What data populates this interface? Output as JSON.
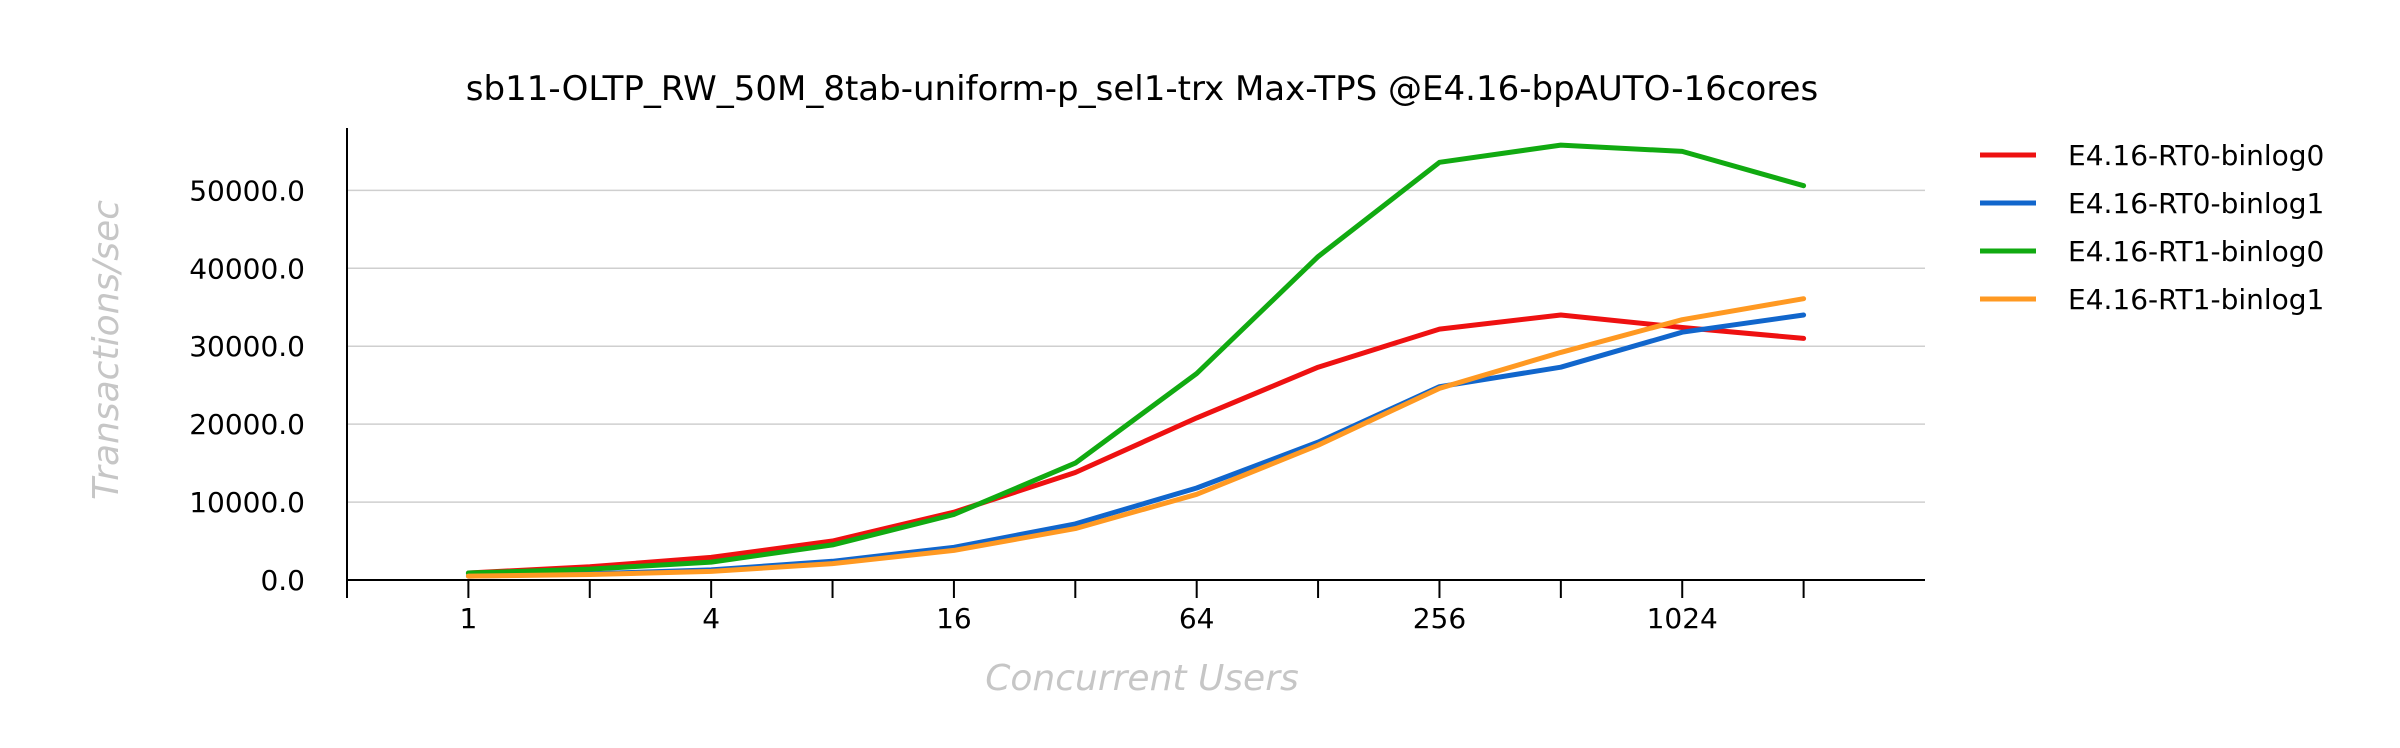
{
  "chart_data": {
    "type": "line",
    "title": "sb11-OLTP_RW_50M_8tab-uniform-p_sel1-trx Max-TPS @E4.16-bpAUTO-16cores",
    "xlabel": "Concurrent Users",
    "ylabel": "Transactions/sec",
    "x_scale": "log2",
    "x": [
      1,
      2,
      4,
      8,
      16,
      32,
      64,
      128,
      256,
      512,
      1024,
      2048
    ],
    "x_tick_labels": [
      "1",
      "4",
      "16",
      "64",
      "256",
      "1024"
    ],
    "x_tick_values": [
      1,
      4,
      16,
      64,
      256,
      1024
    ],
    "xlim": [
      0.5,
      4096
    ],
    "y_tick_labels": [
      "0.0",
      "10000.0",
      "20000.0",
      "30000.0",
      "40000.0",
      "50000.0"
    ],
    "y_tick_values": [
      0,
      10000,
      20000,
      30000,
      40000,
      50000
    ],
    "ylim": [
      0,
      58000
    ],
    "grid": "horizontal",
    "legend_position": "outside-right-top",
    "series": [
      {
        "name": "E4.16-RT0-binlog0",
        "color": "#ee1111",
        "values": [
          900,
          1700,
          2900,
          5000,
          8700,
          13800,
          20800,
          27300,
          32200,
          34000,
          32400,
          31000
        ]
      },
      {
        "name": "E4.16-RT0-binlog1",
        "color": "#1166cc",
        "values": [
          500,
          800,
          1300,
          2400,
          4200,
          7200,
          11800,
          17700,
          24800,
          27300,
          31800,
          34000
        ]
      },
      {
        "name": "E4.16-RT1-binlog0",
        "color": "#11aa11",
        "values": [
          900,
          1400,
          2300,
          4500,
          8400,
          15000,
          26500,
          41500,
          53600,
          55800,
          55000,
          50600
        ]
      },
      {
        "name": "E4.16-RT1-binlog1",
        "color": "#ff9922",
        "values": [
          500,
          700,
          1100,
          2100,
          3800,
          6600,
          11000,
          17300,
          24600,
          29200,
          33400,
          36100
        ]
      }
    ]
  }
}
